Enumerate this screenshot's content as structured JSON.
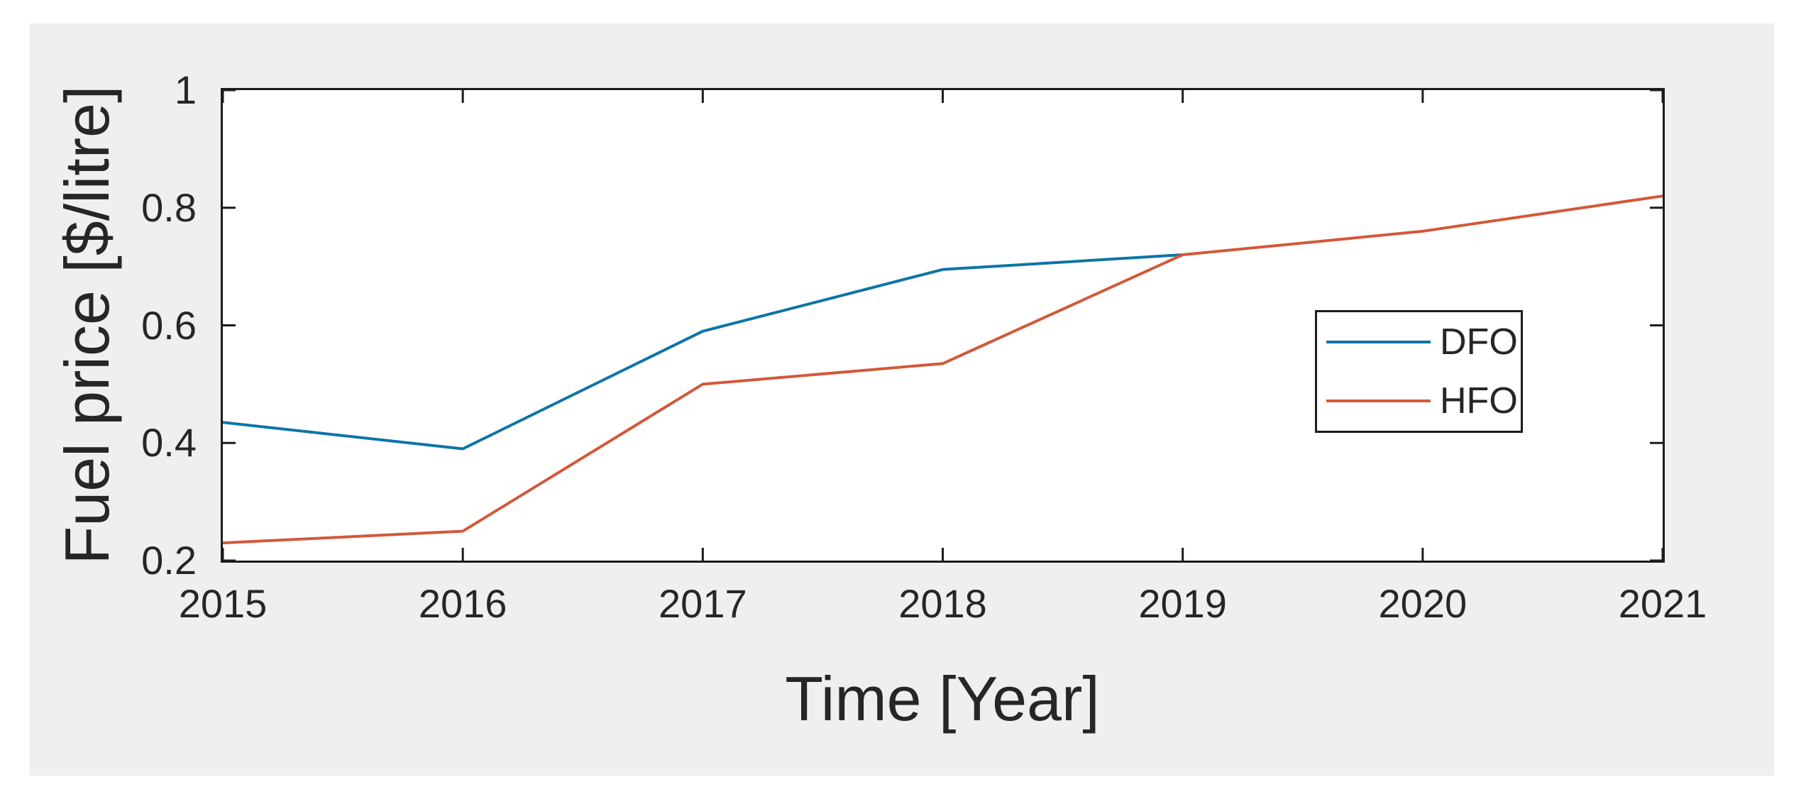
{
  "figure": {
    "page_background": "#ffffff",
    "panel_background": "#efefef",
    "axis_color": "#1c1c1c",
    "text_color": "#262626"
  },
  "chart_data": {
    "type": "line",
    "title": "",
    "xlabel": "Time [Year]",
    "ylabel": "Fuel price [$/litre]",
    "xlim": [
      2015,
      2021
    ],
    "ylim": [
      0.2,
      1.0
    ],
    "x_ticks": [
      2015,
      2016,
      2017,
      2018,
      2019,
      2020,
      2021
    ],
    "x_tick_labels": [
      "2015",
      "2016",
      "2017",
      "2018",
      "2019",
      "2020",
      "2021"
    ],
    "y_ticks": [
      0.2,
      0.4,
      0.6,
      0.8,
      1.0
    ],
    "y_tick_labels": [
      "0.2",
      "0.4",
      "0.6",
      "0.8",
      "1"
    ],
    "grid": false,
    "tick_direction": "in",
    "box": true,
    "legend_position": "middle-right",
    "series": [
      {
        "name": "DFO",
        "color": "#0e74a6",
        "x": [
          2015,
          2016,
          2017,
          2018,
          2019
        ],
        "values": [
          0.435,
          0.39,
          0.59,
          0.695,
          0.72
        ]
      },
      {
        "name": "HFO",
        "color": "#d3583a",
        "x": [
          2015,
          2016,
          2017,
          2018,
          2019,
          2020,
          2021
        ],
        "values": [
          0.23,
          0.25,
          0.5,
          0.535,
          0.72,
          0.76,
          0.82
        ]
      }
    ]
  },
  "legend": {
    "items": [
      {
        "label": "DFO"
      },
      {
        "label": "HFO"
      }
    ]
  }
}
